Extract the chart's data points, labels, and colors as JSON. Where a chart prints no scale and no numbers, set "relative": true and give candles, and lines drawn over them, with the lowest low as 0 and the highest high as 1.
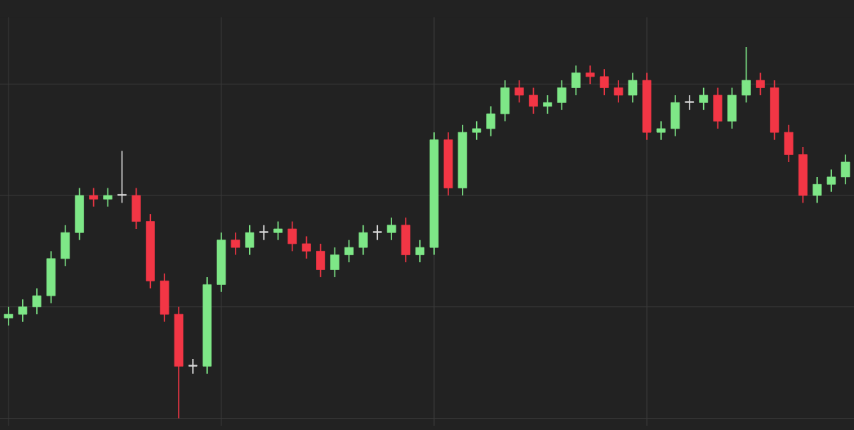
{
  "chart_data": {
    "type": "candlestick",
    "relative": true,
    "grid": true,
    "categories": [
      null,
      null,
      null,
      null,
      null,
      null,
      null,
      null,
      null,
      null,
      null,
      null,
      null,
      null,
      null,
      null,
      null,
      null,
      null,
      null,
      null,
      null,
      null,
      null,
      null,
      null,
      null,
      null,
      null,
      null,
      null,
      null,
      null,
      null,
      null,
      null,
      null,
      null,
      null,
      null,
      null,
      null,
      null,
      null,
      null,
      null,
      null,
      null,
      null,
      null,
      null,
      null,
      null,
      null,
      null,
      null,
      null,
      null,
      null,
      null
    ],
    "ohlc": [
      [
        0.27,
        0.3,
        0.25,
        0.28
      ],
      [
        0.28,
        0.32,
        0.26,
        0.3
      ],
      [
        0.3,
        0.35,
        0.28,
        0.33
      ],
      [
        0.33,
        0.45,
        0.31,
        0.43
      ],
      [
        0.43,
        0.52,
        0.41,
        0.5
      ],
      [
        0.5,
        0.62,
        0.48,
        0.6
      ],
      [
        0.6,
        0.62,
        0.57,
        0.59
      ],
      [
        0.59,
        0.62,
        0.57,
        0.6
      ],
      [
        0.6,
        0.72,
        0.58,
        0.6
      ],
      [
        0.6,
        0.62,
        0.51,
        0.53
      ],
      [
        0.53,
        0.55,
        0.35,
        0.37
      ],
      [
        0.37,
        0.39,
        0.26,
        0.28
      ],
      [
        0.28,
        0.3,
        0,
        0.14
      ],
      [
        0.14,
        0.16,
        0.12,
        0.14
      ],
      [
        0.14,
        0.38,
        0.12,
        0.36
      ],
      [
        0.36,
        0.5,
        0.34,
        0.48
      ],
      [
        0.48,
        0.5,
        0.44,
        0.46
      ],
      [
        0.46,
        0.52,
        0.44,
        0.5
      ],
      [
        0.5,
        0.52,
        0.48,
        0.5
      ],
      [
        0.5,
        0.53,
        0.48,
        0.51
      ],
      [
        0.51,
        0.53,
        0.45,
        0.47
      ],
      [
        0.47,
        0.49,
        0.43,
        0.45
      ],
      [
        0.45,
        0.47,
        0.38,
        0.4
      ],
      [
        0.4,
        0.46,
        0.38,
        0.44
      ],
      [
        0.44,
        0.48,
        0.42,
        0.46
      ],
      [
        0.46,
        0.52,
        0.44,
        0.5
      ],
      [
        0.5,
        0.52,
        0.48,
        0.5
      ],
      [
        0.5,
        0.54,
        0.48,
        0.52
      ],
      [
        0.52,
        0.54,
        0.42,
        0.44
      ],
      [
        0.44,
        0.48,
        0.42,
        0.46
      ],
      [
        0.46,
        0.77,
        0.44,
        0.75
      ],
      [
        0.75,
        0.77,
        0.6,
        0.62
      ],
      [
        0.62,
        0.79,
        0.6,
        0.77
      ],
      [
        0.77,
        0.8,
        0.75,
        0.78
      ],
      [
        0.78,
        0.84,
        0.76,
        0.82
      ],
      [
        0.82,
        0.91,
        0.8,
        0.89
      ],
      [
        0.89,
        0.91,
        0.85,
        0.87
      ],
      [
        0.87,
        0.89,
        0.82,
        0.84
      ],
      [
        0.84,
        0.87,
        0.82,
        0.85
      ],
      [
        0.85,
        0.91,
        0.83,
        0.89
      ],
      [
        0.89,
        0.95,
        0.87,
        0.93
      ],
      [
        0.93,
        0.95,
        0.9,
        0.92
      ],
      [
        0.92,
        0.94,
        0.87,
        0.89
      ],
      [
        0.89,
        0.91,
        0.85,
        0.87
      ],
      [
        0.87,
        0.93,
        0.85,
        0.91
      ],
      [
        0.91,
        0.93,
        0.75,
        0.77
      ],
      [
        0.77,
        0.8,
        0.75,
        0.78
      ],
      [
        0.78,
        0.87,
        0.76,
        0.85
      ],
      [
        0.85,
        0.87,
        0.83,
        0.85
      ],
      [
        0.85,
        0.89,
        0.83,
        0.87
      ],
      [
        0.87,
        0.89,
        0.78,
        0.8
      ],
      [
        0.8,
        0.89,
        0.78,
        0.87
      ],
      [
        0.87,
        1,
        0.85,
        0.91
      ],
      [
        0.91,
        0.93,
        0.87,
        0.89
      ],
      [
        0.89,
        0.91,
        0.75,
        0.77
      ],
      [
        0.77,
        0.79,
        0.69,
        0.71
      ],
      [
        0.71,
        0.73,
        0.58,
        0.6
      ],
      [
        0.6,
        0.65,
        0.58,
        0.63
      ],
      [
        0.63,
        0.67,
        0.61,
        0.65
      ],
      [
        0.65,
        0.71,
        0.63,
        0.69
      ]
    ],
    "colors": [
      "#7ee787",
      "#7ee787",
      "#7ee787",
      "#7ee787",
      "#7ee787",
      "#7ee787",
      "#f23645",
      "#7ee787",
      "#d9d9d9",
      "#f23645",
      "#f23645",
      "#f23645",
      "#f23645",
      "#d9d9d9",
      "#7ee787",
      "#7ee787",
      "#f23645",
      "#7ee787",
      "#d9d9d9",
      "#7ee787",
      "#f23645",
      "#f23645",
      "#f23645",
      "#7ee787",
      "#7ee787",
      "#7ee787",
      "#d9d9d9",
      "#7ee787",
      "#f23645",
      "#7ee787",
      "#7ee787",
      "#f23645",
      "#7ee787",
      "#7ee787",
      "#7ee787",
      "#7ee787",
      "#f23645",
      "#f23645",
      "#7ee787",
      "#7ee787",
      "#7ee787",
      "#f23645",
      "#f23645",
      "#f23645",
      "#7ee787",
      "#f23645",
      "#7ee787",
      "#7ee787",
      "#d9d9d9",
      "#7ee787",
      "#f23645",
      "#7ee787",
      "#7ee787",
      "#f23645",
      "#f23645",
      "#f23645",
      "#f23645",
      "#7ee787",
      "#7ee787",
      "#7ee787"
    ]
  }
}
